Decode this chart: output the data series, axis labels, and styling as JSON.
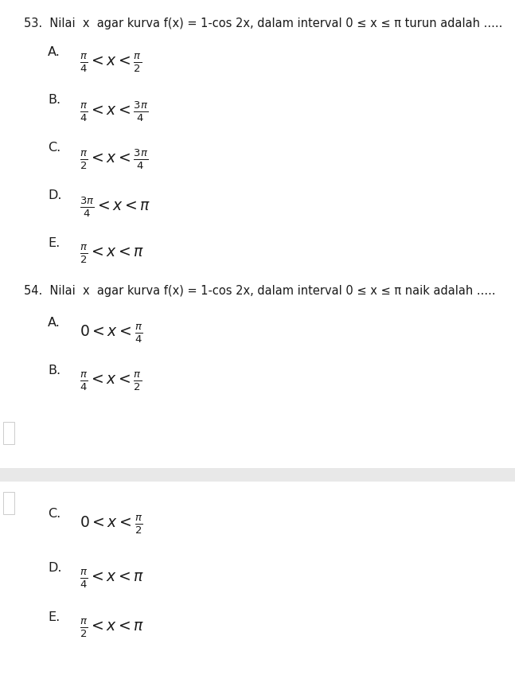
{
  "bg_color": "#ffffff",
  "text_color": "#1a1a1a",
  "gray_band_color": "#e8e8e8",
  "divider_color": "#cccccc",
  "rect_edge_color": "#cccccc",
  "q53_header": "53.  Nilai  x  agar kurva f(x) = 1-cos 2x, dalam interval 0 ≤ x ≤ π turun adalah .....",
  "q53_options": [
    {
      "label": "A.",
      "expr": "$\\frac{\\pi}{4} < x < \\frac{\\pi}{2}$"
    },
    {
      "label": "B.",
      "expr": "$\\frac{\\pi}{4} < x < \\frac{3\\pi}{4}$"
    },
    {
      "label": "C.",
      "expr": "$\\frac{\\pi}{2} < x < \\frac{3\\pi}{4}$"
    },
    {
      "label": "D.",
      "expr": "$\\frac{3\\pi}{4} < x < \\pi$"
    },
    {
      "label": "E.",
      "expr": "$\\frac{\\pi}{2} < x < \\pi$"
    }
  ],
  "q54_header": "54.  Nilai  x  agar kurva f(x) = 1-cos 2x, dalam interval 0 ≤ x ≤ π naik adalah .....",
  "q54_options_top": [
    {
      "label": "A.",
      "expr": "$0 < x < \\frac{\\pi}{4}$"
    },
    {
      "label": "B.",
      "expr": "$\\frac{\\pi}{4} < x < \\frac{\\pi}{2}$"
    }
  ],
  "q54_options_bottom": [
    {
      "label": "C.",
      "expr": "$0 < x < \\frac{\\pi}{2}$"
    },
    {
      "label": "D.",
      "expr": "$\\frac{\\pi}{4} < x < \\pi$"
    },
    {
      "label": "E.",
      "expr": "$\\frac{\\pi}{2} < x < \\pi$"
    }
  ]
}
